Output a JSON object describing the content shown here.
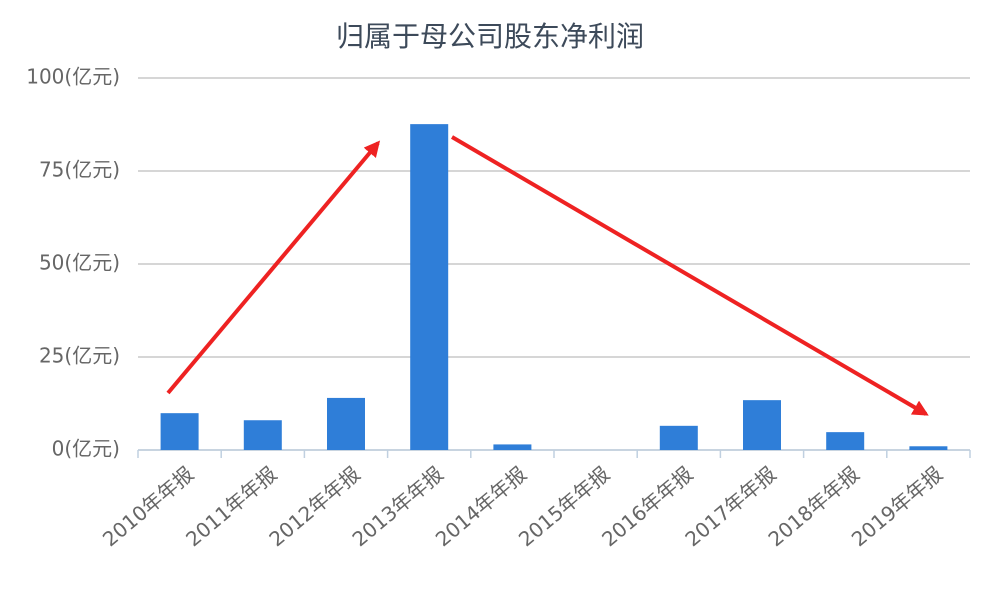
{
  "chart_data": {
    "type": "bar",
    "title": "归属于母公司股东净利润",
    "categories": [
      "2010年年报",
      "2011年年报",
      "2012年年报",
      "2013年年报",
      "2014年年报",
      "2015年年报",
      "2016年年报",
      "2017年年报",
      "2018年年报",
      "2019年年报"
    ],
    "values": [
      9.9,
      8,
      14,
      87.6,
      1.5,
      0,
      6.5,
      13.4,
      4.8,
      1
    ],
    "color": "#2f7ed8",
    "ylim": [
      0,
      100
    ],
    "yticks": [
      {
        "value": 0,
        "label": "0(亿元)"
      },
      {
        "value": 25,
        "label": "25(亿元)"
      },
      {
        "value": 50,
        "label": "50(亿元)"
      },
      {
        "value": 75,
        "label": "75(亿元)"
      },
      {
        "value": 100,
        "label": "100(亿元)"
      }
    ],
    "grid": true
  }
}
